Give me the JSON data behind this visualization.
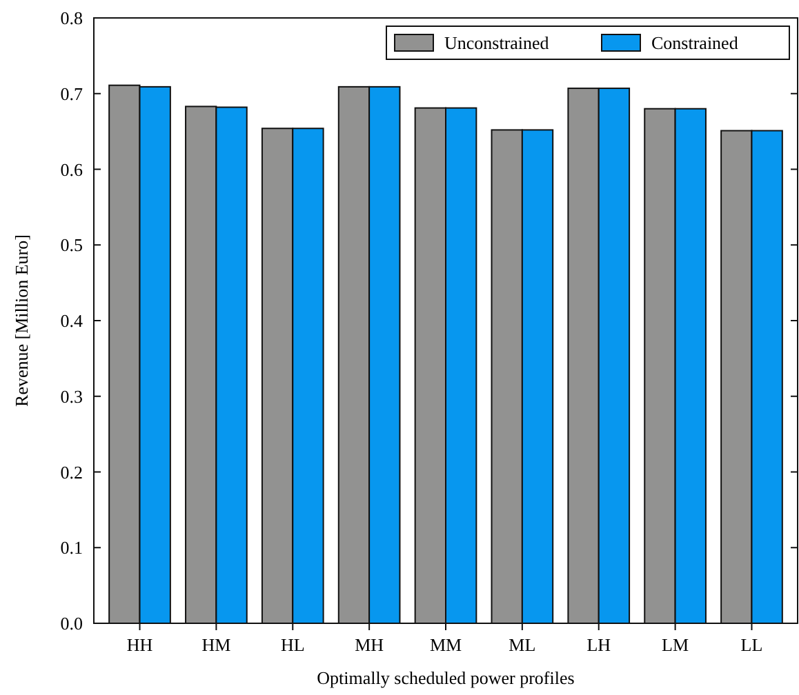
{
  "chart_data": {
    "type": "bar",
    "xlabel": "Optimally scheduled power profiles",
    "ylabel": "Revenue [Million Euro]",
    "categories": [
      "HH",
      "HM",
      "HL",
      "MH",
      "MM",
      "ML",
      "LH",
      "LM",
      "LL"
    ],
    "series": [
      {
        "name": "Unconstrained",
        "color": "#929291",
        "values": [
          0.711,
          0.683,
          0.654,
          0.709,
          0.681,
          0.652,
          0.707,
          0.68,
          0.651
        ]
      },
      {
        "name": "Constrained",
        "color": "#0797ef",
        "values": [
          0.709,
          0.682,
          0.654,
          0.709,
          0.681,
          0.652,
          0.707,
          0.68,
          0.651
        ]
      }
    ],
    "ylim": [
      0,
      0.8
    ],
    "yticks": [
      {
        "value": 0,
        "label": "0.0"
      },
      0.1,
      0.2,
      0.3,
      0.4,
      0.5,
      0.6,
      0.7,
      0.8
    ],
    "legend": "top right"
  }
}
